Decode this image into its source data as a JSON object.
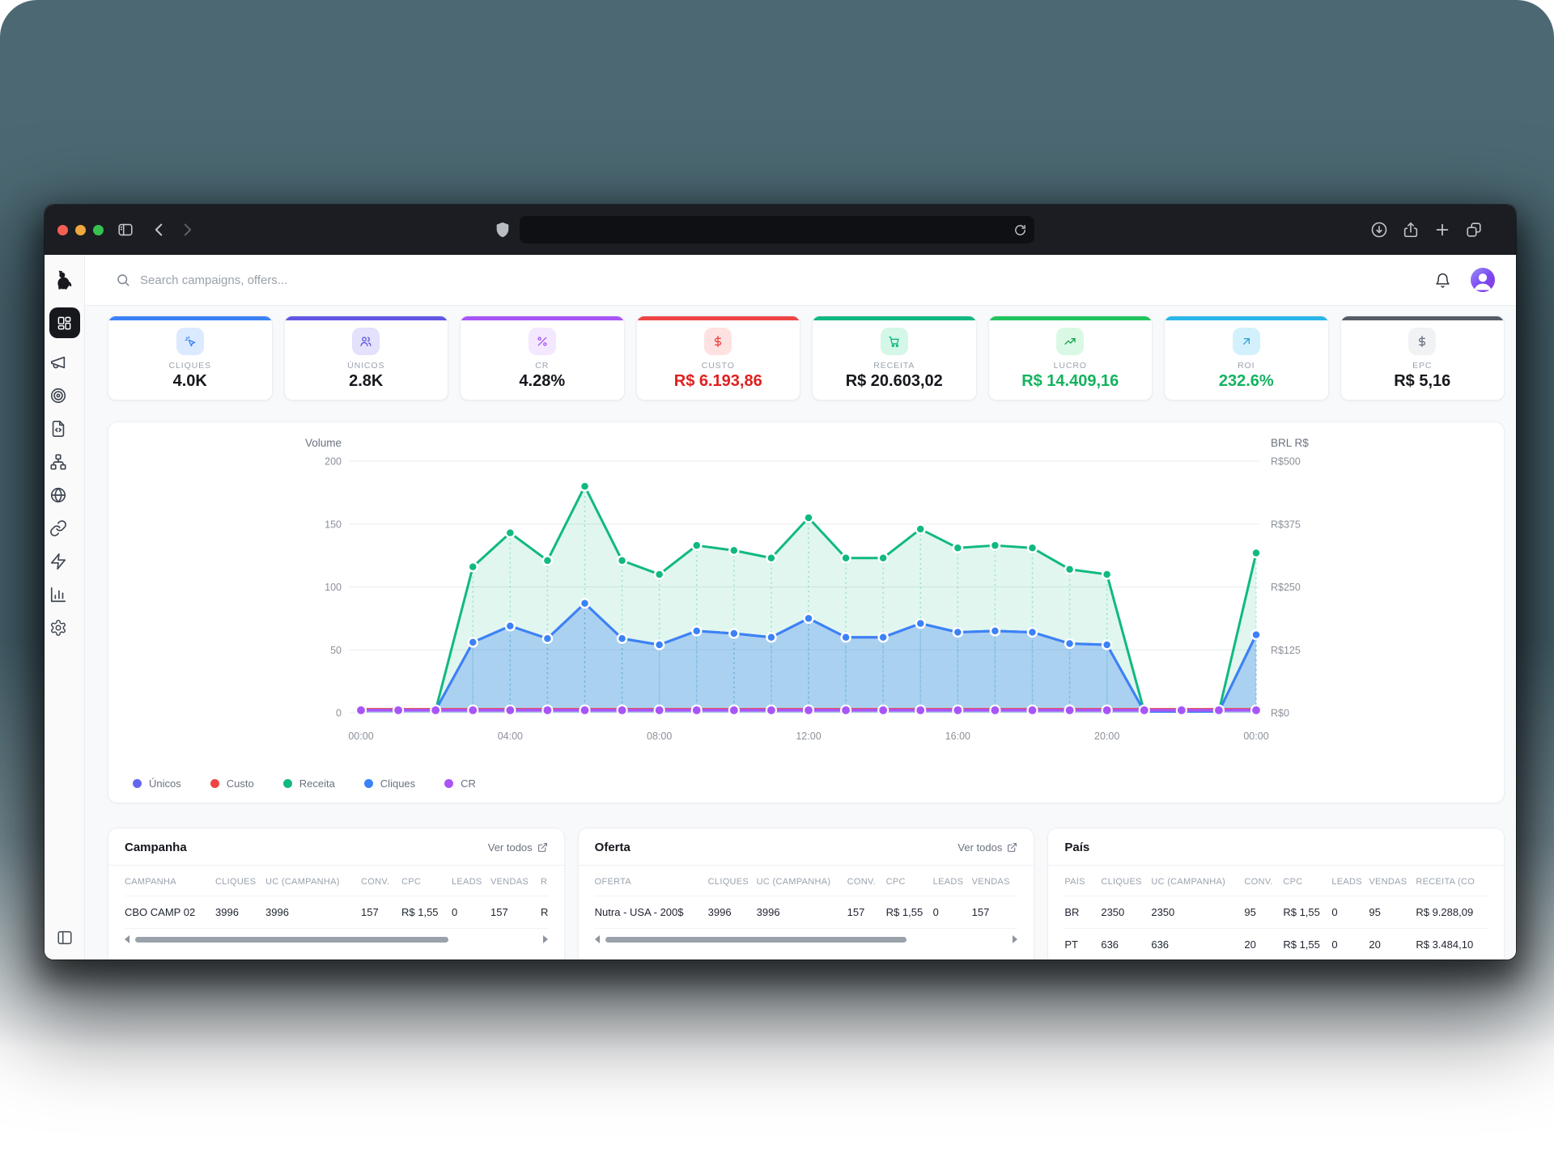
{
  "browser": {
    "traffic_lights": [
      "#f45f54",
      "#efa73e",
      "#37c24f"
    ]
  },
  "topbar": {
    "search_placeholder": "Search campaigns, offers..."
  },
  "sidebar": {
    "items": [
      {
        "name": "dashboard",
        "icon": "dashboard",
        "active": true
      },
      {
        "name": "campaigns",
        "icon": "megaphone",
        "active": false
      },
      {
        "name": "offers",
        "icon": "target",
        "active": false
      },
      {
        "name": "landers",
        "icon": "file-code",
        "active": false
      },
      {
        "name": "flows",
        "icon": "network",
        "active": false
      },
      {
        "name": "domains",
        "icon": "globe",
        "active": false
      },
      {
        "name": "links",
        "icon": "link",
        "active": false
      },
      {
        "name": "automation",
        "icon": "zap",
        "active": false
      },
      {
        "name": "reports",
        "icon": "bar-chart",
        "active": false
      },
      {
        "name": "settings",
        "icon": "settings",
        "active": false
      }
    ]
  },
  "kpis": [
    {
      "label": "CLIQUES",
      "value": "4.0K",
      "icon": "cursor-click",
      "accent": "#3b82f6",
      "tint": "#dbeafe",
      "icon_color": "#3b82f6",
      "value_color": "#16181d"
    },
    {
      "label": "ÚNICOS",
      "value": "2.8K",
      "icon": "users",
      "accent": "#6156e4",
      "tint": "#e3e1fb",
      "icon_color": "#6156e4",
      "value_color": "#16181d"
    },
    {
      "label": "CR",
      "value": "4.28%",
      "icon": "percent",
      "accent": "#a855f7",
      "tint": "#f3e8ff",
      "icon_color": "#a855f7",
      "value_color": "#16181d"
    },
    {
      "label": "CUSTO",
      "value": "R$ 6.193,86",
      "icon": "dollar",
      "accent": "#ef4444",
      "tint": "#fee2e2",
      "icon_color": "#ef4444",
      "value_color": "#e02020"
    },
    {
      "label": "RECEITA",
      "value": "R$ 20.603,02",
      "icon": "cart",
      "accent": "#10b981",
      "tint": "#d4f7e7",
      "icon_color": "#10b981",
      "value_color": "#16181d"
    },
    {
      "label": "LUCRO",
      "value": "R$ 14.409,16",
      "icon": "trend-up",
      "accent": "#22c55e",
      "tint": "#d9f9e5",
      "icon_color": "#16a34a",
      "value_color": "#13b35f"
    },
    {
      "label": "ROI",
      "value": "232.6%",
      "icon": "arrow-up-right",
      "accent": "#29b6e8",
      "tint": "#d3f1fc",
      "icon_color": "#2aa3dc",
      "value_color": "#13b35f"
    },
    {
      "label": "EPC",
      "value": "R$ 5,16",
      "icon": "dollar",
      "accent": "#565d68",
      "tint": "#f1f2f4",
      "icon_color": "#6b7280",
      "value_color": "#16181d"
    }
  ],
  "chart_data": {
    "type": "line",
    "title": "",
    "y_axis_title": "Volume",
    "y2_axis_title": "BRL R$",
    "y_max": 200,
    "y_ticks": [
      0,
      50,
      100,
      150,
      200
    ],
    "y_tick_labels": [
      "0",
      "50",
      "100",
      "150",
      "200"
    ],
    "y2_tick_labels": [
      "R$0",
      "R$125",
      "R$250",
      "R$375",
      "R$500"
    ],
    "x_tick_every": 4,
    "grid": true,
    "legend_position": "bottom-left",
    "categories": [
      "00:00",
      "01:00",
      "02:00",
      "03:00",
      "04:00",
      "05:00",
      "06:00",
      "07:00",
      "08:00",
      "09:00",
      "10:00",
      "11:00",
      "12:00",
      "13:00",
      "14:00",
      "15:00",
      "16:00",
      "17:00",
      "18:00",
      "19:00",
      "20:00",
      "21:00",
      "22:00",
      "23:00",
      "00:00"
    ],
    "series": [
      {
        "name": "Únicos",
        "color": "#6366f1",
        "values": [
          2,
          2,
          2,
          56,
          69,
          59,
          87,
          59,
          54,
          65,
          63,
          60,
          75,
          60,
          60,
          71,
          64,
          65,
          64,
          55,
          54,
          1,
          1,
          1,
          62
        ]
      },
      {
        "name": "Custo",
        "color": "#ef4444",
        "values": [
          3,
          3,
          3,
          3,
          3,
          3,
          3,
          3,
          3,
          3,
          3,
          3,
          3,
          3,
          3,
          3,
          3,
          3,
          3,
          3,
          3,
          3,
          3,
          3,
          3
        ]
      },
      {
        "name": "Receita",
        "color": "#10b981",
        "values": [
          2,
          2,
          2,
          116,
          143,
          121,
          180,
          121,
          110,
          133,
          129,
          123,
          155,
          123,
          123,
          146,
          131,
          133,
          131,
          114,
          110,
          1,
          1,
          1,
          127
        ]
      },
      {
        "name": "Cliques",
        "color": "#3b82f6",
        "values": [
          2,
          2,
          2,
          56,
          69,
          59,
          87,
          59,
          54,
          65,
          63,
          60,
          75,
          60,
          60,
          71,
          64,
          65,
          64,
          55,
          54,
          1,
          1,
          1,
          62
        ]
      },
      {
        "name": "CR",
        "color": "#a855f7",
        "values": [
          2,
          2,
          2,
          2,
          2,
          2,
          2,
          2,
          2,
          2,
          2,
          2,
          2,
          2,
          2,
          2,
          2,
          2,
          2,
          2,
          2,
          2,
          2,
          2,
          2
        ]
      }
    ]
  },
  "tables": [
    {
      "title": "Campanha",
      "link": "Ver todos",
      "columns": [
        "CAMPANHA",
        "CLIQUES",
        "UC (CAMPANHA)",
        "CONV.",
        "CPC",
        "LEADS",
        "VENDAS",
        "R"
      ],
      "rows": [
        [
          "CBO CAMP 02",
          "3996",
          "3996",
          "157",
          "R$ 1,55",
          "0",
          "157",
          "R"
        ]
      ],
      "scroll_thumb": 0.78
    },
    {
      "title": "Oferta",
      "link": "Ver todos",
      "columns": [
        "OFERTA",
        "CLIQUES",
        "UC (CAMPANHA)",
        "CONV.",
        "CPC",
        "LEADS",
        "VENDAS"
      ],
      "rows": [
        [
          "Nutra - USA - 200$",
          "3996",
          "3996",
          "157",
          "R$ 1,55",
          "0",
          "157"
        ]
      ],
      "scroll_thumb": 0.75
    },
    {
      "title": "País",
      "link": null,
      "columns": [
        "PAÍS",
        "CLIQUES",
        "UC (CAMPANHA)",
        "CONV.",
        "CPC",
        "LEADS",
        "VENDAS",
        "RECEITA (CO"
      ],
      "rows": [
        [
          "BR",
          "2350",
          "2350",
          "95",
          "R$ 1,55",
          "0",
          "95",
          "R$ 9.288,09"
        ],
        [
          "PT",
          "636",
          "636",
          "20",
          "R$ 1,55",
          "0",
          "20",
          "R$ 3.484,10"
        ]
      ],
      "scroll_thumb": null
    }
  ]
}
